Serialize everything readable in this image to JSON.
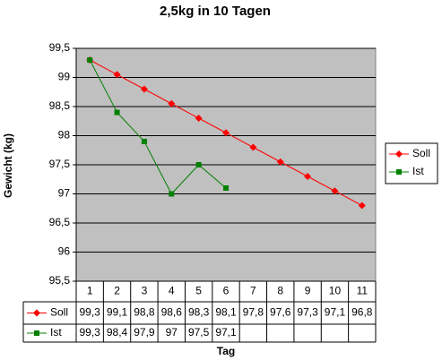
{
  "chart_data": {
    "type": "line",
    "title": "2,5kg in 10 Tagen",
    "x_label": "Tag",
    "y_label": "Gewicht (kg)",
    "categories": [
      "1",
      "2",
      "3",
      "4",
      "5",
      "6",
      "7",
      "8",
      "9",
      "10",
      "11"
    ],
    "series": [
      {
        "name": "Soll",
        "color": "#ff0000",
        "marker": "diamond",
        "values": [
          99.3,
          99.05,
          98.8,
          98.55,
          98.3,
          98.05,
          97.8,
          97.55,
          97.3,
          97.05,
          96.8
        ],
        "value_labels": [
          "99,3",
          "99,1",
          "98,8",
          "98,6",
          "98,3",
          "98,1",
          "97,8",
          "97,6",
          "97,3",
          "97,1",
          "96,8"
        ]
      },
      {
        "name": "Ist",
        "color": "#008000",
        "marker": "square",
        "values": [
          99.3,
          98.4,
          97.9,
          97,
          97.5,
          97.1,
          null,
          null,
          null,
          null,
          null
        ],
        "value_labels": [
          "99,3",
          "98,4",
          "97,9",
          "97",
          "97,5",
          "97,1",
          null,
          null,
          null,
          null,
          null
        ]
      }
    ],
    "ylim": [
      95.5,
      99.5
    ],
    "yticks": [
      {
        "value": 95.5,
        "label": "95,5"
      },
      96,
      {
        "value": 96.5,
        "label": "96,5"
      },
      97,
      {
        "value": 97.5,
        "label": "97,5"
      },
      98,
      {
        "value": 98.5,
        "label": "98,5"
      },
      99,
      {
        "value": 99.5,
        "label": "99,5"
      }
    ],
    "grid": true,
    "legend": "right",
    "plot_background": "#c0c0c0",
    "data_table": true
  }
}
